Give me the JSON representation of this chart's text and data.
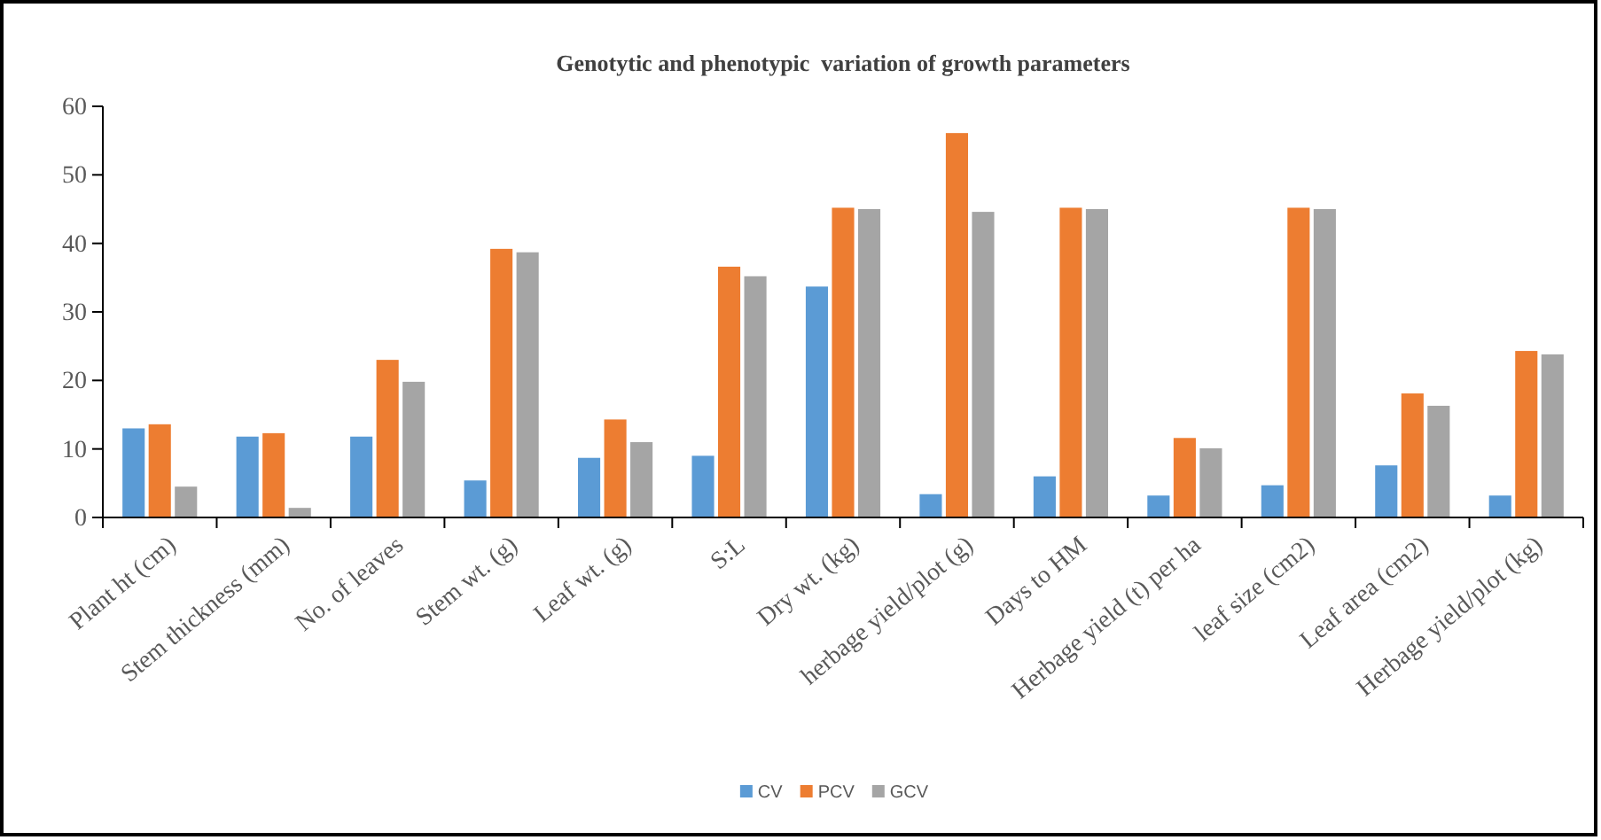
{
  "chart_data": {
    "type": "bar",
    "title": "Genotytic and phenotypic  variation of growth parameters",
    "categories": [
      "Plant ht (cm)",
      "Stem thickness (mm)",
      "No. of leaves",
      "Stem wt. (g)",
      "Leaf wt. (g)",
      "S:L",
      "Dry wt. (kg)",
      "herbage yield/plot (g)",
      "Days to HM",
      "Herbage yield (t) per ha",
      "leaf size (cm2)",
      "Leaf area (cm2)",
      "Herbage yield/plot (kg)"
    ],
    "series": [
      {
        "name": "CV",
        "color": "#5b9bd5",
        "values": [
          13,
          11.8,
          11.8,
          5.4,
          8.7,
          9,
          33.7,
          3.4,
          6,
          3.2,
          4.7,
          7.6,
          3.2
        ]
      },
      {
        "name": "PCV",
        "color": "#ed7d31",
        "values": [
          13.6,
          12.3,
          23,
          39.2,
          14.3,
          36.6,
          45.2,
          56.1,
          45.2,
          11.6,
          45.2,
          18.1,
          24.3
        ]
      },
      {
        "name": "GCV",
        "color": "#a5a5a5",
        "values": [
          4.5,
          1.4,
          19.8,
          38.7,
          11,
          35.2,
          45,
          44.6,
          45,
          10.1,
          45,
          16.3,
          23.8
        ]
      }
    ],
    "ylim": [
      0,
      60
    ],
    "yticks": [
      0,
      10,
      20,
      30,
      40,
      50,
      60
    ],
    "grid": false,
    "legend": "bottom"
  }
}
